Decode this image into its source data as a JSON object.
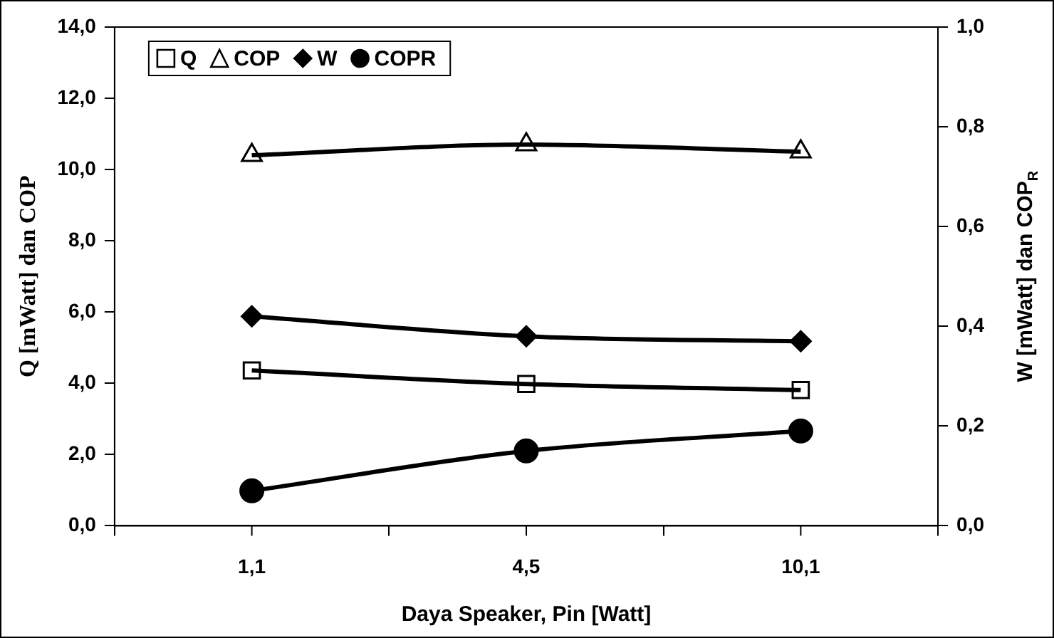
{
  "chart_data": {
    "type": "line",
    "xlabel": "Daya Speaker, Pin [Watt]",
    "ylabel": "Q [mWatt] dan COP",
    "y2label": "W [mWatt] dan COP$_{R}$",
    "categories": [
      "1,1",
      "4,5",
      "10,1"
    ],
    "series": [
      {
        "name": "Q",
        "color": "#000000",
        "marker": "square",
        "values": [
          4.36,
          3.98,
          3.81
        ]
      },
      {
        "name": "COP",
        "color": "#000000",
        "marker": "triangle",
        "values": [
          10.4,
          10.7,
          10.5
        ]
      },
      {
        "name": "W",
        "color": "#000000",
        "marker": "diamond",
        "axis": "y2",
        "values": [
          0.42,
          0.38,
          0.37
        ]
      },
      {
        "name": "COPR",
        "color": "#000000",
        "marker": "circle",
        "axis": "y2",
        "values": [
          0.07,
          0.15,
          0.19
        ]
      }
    ],
    "ylim": [
      0,
      14
    ],
    "yticks": [
      {
        "value": 0,
        "label": "0,0"
      },
      {
        "value": 2,
        "label": "2,0"
      },
      {
        "value": 4,
        "label": "4,0"
      },
      {
        "value": 6,
        "label": "6,0"
      },
      {
        "value": 8,
        "label": "8,0"
      },
      {
        "value": 10,
        "label": "10,0"
      },
      {
        "value": 12,
        "label": "12,0"
      },
      {
        "value": 14,
        "label": "14,0"
      }
    ],
    "y2lim": [
      0,
      1
    ],
    "y2ticks": [
      {
        "value": 0,
        "label": "0,0"
      },
      {
        "value": 0.2,
        "label": "0,2"
      },
      {
        "value": 0.4,
        "label": "0,4"
      },
      {
        "value": 0.6,
        "label": "0,6"
      },
      {
        "value": 0.8,
        "label": "0,8"
      },
      {
        "value": 1,
        "label": "1,0"
      }
    ],
    "grid": false,
    "legend": "top left",
    "line_style": "solid"
  }
}
